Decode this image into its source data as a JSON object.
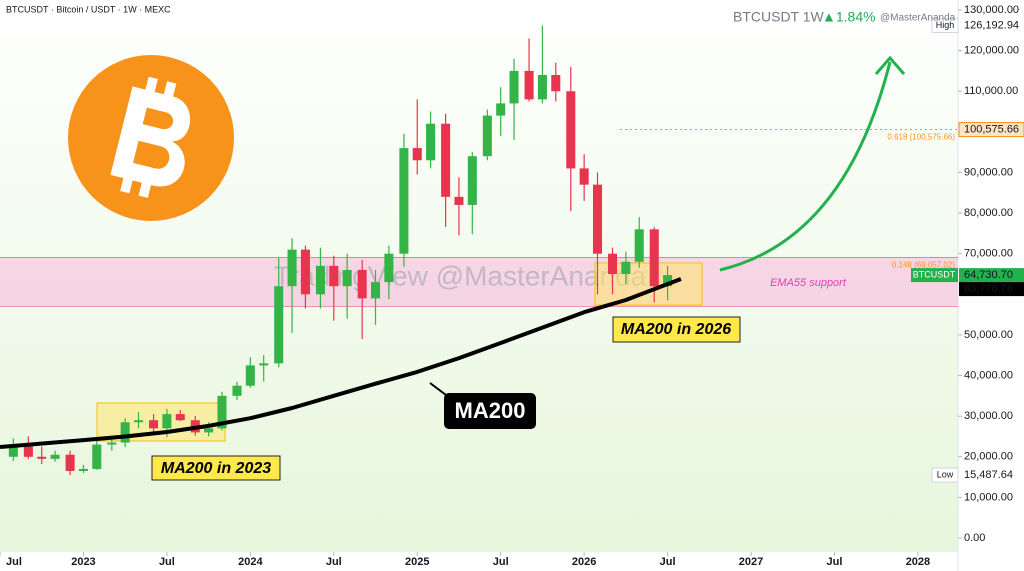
{
  "chart_data": {
    "type": "candlestick",
    "title": "BTCUSDT · Bitcoin / USDT · 1W · MEXC",
    "symbol": "BTCUSDT 1W",
    "change": "▲1.84%",
    "author": "@MasterAnanda",
    "watermark": "TradingView @MasterAnanda",
    "up_color": "#34b347",
    "down_color": "#e8344e",
    "x": [
      2022.58,
      2022.67,
      2022.75,
      2022.83,
      2022.92,
      2023.0,
      2023.08,
      2023.17,
      2023.25,
      2023.33,
      2023.42,
      2023.5,
      2023.58,
      2023.67,
      2023.75,
      2023.83,
      2023.92,
      2024.0,
      2024.08,
      2024.17,
      2024.25,
      2024.33,
      2024.42,
      2024.5,
      2024.58,
      2024.67,
      2024.75,
      2024.83,
      2024.92,
      2025.0,
      2025.08,
      2025.17,
      2025.25,
      2025.33,
      2025.42,
      2025.5,
      2025.58,
      2025.67,
      2025.75,
      2025.83,
      2025.92,
      2026.0,
      2026.08,
      2026.17,
      2026.25,
      2026.33,
      2026.42,
      2026.5
    ],
    "open": [
      20000,
      23000,
      20000,
      19500,
      20500,
      16500,
      17000,
      23000,
      23500,
      28500,
      29000,
      27000,
      30500,
      29000,
      26000,
      27000,
      35000,
      37500,
      42500,
      43000,
      62000,
      71000,
      60000,
      67000,
      62000,
      66000,
      59000,
      63000,
      70000,
      96000,
      93000,
      102000,
      84000,
      82000,
      94000,
      104000,
      107000,
      115000,
      108000,
      114000,
      110000,
      91000,
      87000,
      70000,
      65000,
      68000,
      76000,
      62000
    ],
    "high": [
      24500,
      25000,
      22500,
      21500,
      21500,
      18000,
      24000,
      25000,
      29500,
      31000,
      30500,
      31800,
      31500,
      30000,
      28500,
      36000,
      38500,
      44500,
      45000,
      69000,
      73800,
      72000,
      71500,
      69500,
      70000,
      68500,
      66000,
      72000,
      99500,
      108000,
      105000,
      104500,
      88800,
      95000,
      105500,
      111000,
      118000,
      123000,
      126192.94,
      117000,
      116000,
      94500,
      90000,
      71500,
      70500,
      79000,
      76500,
      67000
    ],
    "low": [
      19000,
      19500,
      18200,
      18800,
      15487.64,
      16000,
      16800,
      21500,
      22400,
      27000,
      25900,
      24800,
      28800,
      25200,
      25000,
      26500,
      34000,
      37000,
      38500,
      42000,
      50500,
      56500,
      56500,
      53500,
      54000,
      49000,
      52500,
      58800,
      66800,
      89500,
      91000,
      76600,
      74500,
      74800,
      93000,
      99000,
      98000,
      107500,
      107000,
      107500,
      80500,
      83000,
      60000,
      60000,
      62500,
      66500,
      58000,
      58500
    ],
    "close": [
      23000,
      20000,
      19500,
      20500,
      16500,
      17000,
      23000,
      23500,
      28500,
      29000,
      27000,
      30500,
      29000,
      26000,
      27000,
      35000,
      37500,
      42500,
      43000,
      62000,
      71000,
      60000,
      67000,
      62000,
      66000,
      59000,
      63000,
      70000,
      96000,
      93000,
      102000,
      84000,
      82000,
      94000,
      104000,
      107000,
      115000,
      108000,
      114000,
      110000,
      91000,
      87000,
      70000,
      65000,
      68000,
      76000,
      62000,
      64730.7
    ],
    "ma200": {
      "name": "MA200",
      "color": "#000000",
      "x": [
        2022.5,
        2023.0,
        2023.25,
        2023.5,
        2023.75,
        2024.0,
        2024.25,
        2024.5,
        2024.75,
        2025.0,
        2025.25,
        2025.5,
        2025.75,
        2026.0,
        2026.25,
        2026.58
      ],
      "values": [
        22400,
        24100,
        25000,
        26100,
        27600,
        29500,
        32000,
        35000,
        38000,
        40900,
        44300,
        48000,
        51800,
        55600,
        58600,
        63778.76
      ]
    },
    "xlim": [
      2022.5,
      2028.24
    ],
    "xticks": [
      {
        "value": 2022.5,
        "label": "Jul"
      },
      2023,
      {
        "value": 2023.5,
        "label": "Jul"
      },
      2024,
      {
        "value": 2024.5,
        "label": "Jul"
      },
      2025,
      {
        "value": 2025.5,
        "label": "Jul"
      },
      2026,
      {
        "value": 2026.5,
        "label": "Jul"
      },
      2027,
      {
        "value": 2027.5,
        "label": "Jul"
      },
      2028
    ],
    "ylim": [
      0,
      130000
    ],
    "yticks": [
      {
        "value": 0,
        "label": "0.00"
      },
      {
        "value": 10000,
        "label": "10,000.00"
      },
      {
        "value": 20000,
        "label": "20,000.00"
      },
      {
        "value": 30000,
        "label": "30,000.00"
      },
      {
        "value": 40000,
        "label": "40,000.00"
      },
      {
        "value": 50000,
        "label": "50,000.00"
      },
      {
        "value": 70000,
        "label": "70,000.00"
      },
      {
        "value": 80000,
        "label": "80,000.00"
      },
      {
        "value": 90000,
        "label": "90,000.00"
      },
      {
        "value": 100000,
        "label": "100,000.00"
      },
      {
        "value": 110000,
        "label": "110,000.00"
      },
      {
        "value": 120000,
        "label": "120,000.00"
      },
      {
        "value": 130000,
        "label": "130,000.00"
      }
    ],
    "zone": [
      57000,
      69057.02
    ],
    "fib": [
      {
        "label": "0.618 (100,575.66)",
        "value": 100575.66,
        "color": "#f5931f"
      },
      {
        "label": "0.148 (69,057.02)",
        "value": 69057.02,
        "color": "#f5931f"
      }
    ],
    "markers": [
      {
        "name": "High",
        "value": 126192.94,
        "label": "126,192.94",
        "color": "#ffffff"
      },
      {
        "value": 100575.66,
        "label": "100,575.66",
        "color": "#fde3c2"
      },
      {
        "name": "BTCUSDT",
        "value": 64730.7,
        "label": "64,730.70",
        "color": "#22b14c"
      },
      {
        "value": 63778.76,
        "label": "63,778.76",
        "color": "#000000"
      },
      {
        "name": "Low",
        "value": 15487.64,
        "label": "15,487.64",
        "color": "#ffffff"
      }
    ],
    "annotations": [
      "MA200 in 2023",
      "MA200 in 2026",
      "EMA55 support"
    ]
  }
}
